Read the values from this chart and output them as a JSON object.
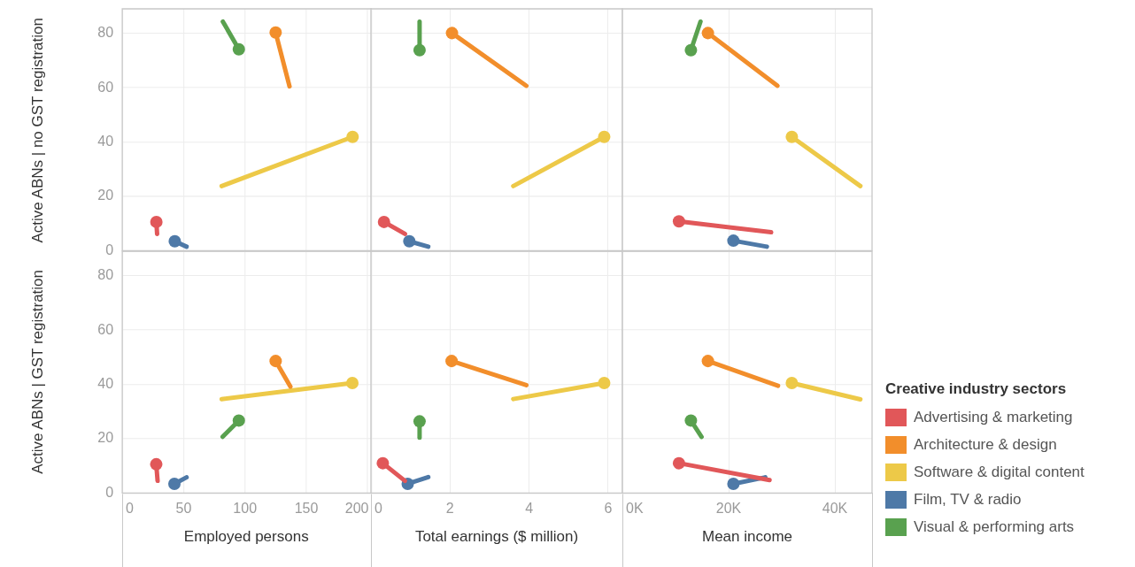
{
  "chart_data": [
    {
      "type": "line",
      "ylabel": "Active ABNs | no GST registration",
      "xlim": [
        0,
        203
      ],
      "xticks": [
        0,
        50,
        100,
        150,
        200
      ],
      "ylim": [
        0,
        89
      ],
      "yticks": [
        0,
        20,
        40,
        60,
        80
      ],
      "tick_labels": "y",
      "grid": true,
      "marker": "circle",
      "series": [
        {
          "color": "#e15759",
          "x": [
            28.4,
            27.8
          ],
          "values": [
            6.2,
            10.6
          ]
        },
        {
          "color": "#f28e2b",
          "x": [
            136.3,
            125
          ],
          "values": [
            60.5,
            80.3
          ]
        },
        {
          "color": "#edc948",
          "x": [
            81,
            187.7
          ],
          "values": [
            23.8,
            41.9
          ]
        },
        {
          "color": "#4e79a7",
          "x": [
            52.4,
            42.8
          ],
          "values": [
            1.5,
            3.5
          ]
        },
        {
          "color": "#59a14f",
          "x": [
            82,
            95
          ],
          "values": [
            84.3,
            74.1
          ]
        }
      ]
    },
    {
      "type": "line",
      "xlim": [
        0,
        6.36
      ],
      "xticks": [
        0,
        2,
        4,
        6
      ],
      "ylim": [
        0,
        89
      ],
      "yticks": [
        0,
        20,
        40,
        60,
        80
      ],
      "tick_labels": false,
      "grid": true,
      "marker": "circle",
      "series": [
        {
          "color": "#e15759",
          "x": [
            0.86,
            0.33
          ],
          "values": [
            6.2,
            10.6
          ]
        },
        {
          "color": "#f28e2b",
          "x": [
            3.93,
            2.05
          ],
          "values": [
            60.7,
            80.1
          ]
        },
        {
          "color": "#edc948",
          "x": [
            3.6,
            5.9
          ],
          "values": [
            23.8,
            41.9
          ]
        },
        {
          "color": "#4e79a7",
          "x": [
            1.45,
            0.97
          ],
          "values": [
            1.5,
            3.5
          ]
        },
        {
          "color": "#59a14f",
          "x": [
            1.23,
            1.23
          ],
          "values": [
            84.3,
            73.8
          ]
        }
      ]
    },
    {
      "type": "line",
      "xlim": [
        0,
        47000
      ],
      "xticks": [
        0,
        20000,
        40000
      ],
      "ylim": [
        0,
        89
      ],
      "yticks": [
        0,
        20,
        40,
        60,
        80
      ],
      "tick_labels": false,
      "grid": true,
      "marker": "circle",
      "series": [
        {
          "color": "#e15759",
          "x": [
            28000,
            10650
          ],
          "values": [
            6.8,
            10.8
          ]
        },
        {
          "color": "#f28e2b",
          "x": [
            29200,
            16100
          ],
          "values": [
            60.7,
            80.1
          ]
        },
        {
          "color": "#edc948",
          "x": [
            44800,
            31900
          ],
          "values": [
            23.8,
            41.9
          ]
        },
        {
          "color": "#4e79a7",
          "x": [
            27200,
            20900
          ],
          "values": [
            1.5,
            3.7
          ]
        },
        {
          "color": "#59a14f",
          "x": [
            14700,
            12900
          ],
          "values": [
            84.3,
            73.8
          ]
        }
      ]
    },
    {
      "type": "line",
      "ylabel": "Active ABNs | GST registration",
      "xlabel": "Employed persons",
      "xlim": [
        0,
        203
      ],
      "xticks": [
        0,
        50,
        100,
        150,
        200
      ],
      "ylim": [
        0,
        89
      ],
      "yticks": [
        0,
        20,
        40,
        60,
        80
      ],
      "grid": true,
      "marker": "circle",
      "series": [
        {
          "color": "#e15759",
          "x": [
            28.8,
            27.7
          ],
          "values": [
            4.5,
            10.6
          ]
        },
        {
          "color": "#f28e2b",
          "x": [
            137,
            125
          ],
          "values": [
            39.2,
            48.6
          ]
        },
        {
          "color": "#edc948",
          "x": [
            81,
            187.5
          ],
          "values": [
            34.6,
            40.5
          ]
        },
        {
          "color": "#4e79a7",
          "x": [
            52.4,
            42.5
          ],
          "values": [
            5.8,
            3.4
          ]
        },
        {
          "color": "#59a14f",
          "x": [
            81.8,
            95
          ],
          "values": [
            20.7,
            26.7
          ]
        }
      ]
    },
    {
      "type": "line",
      "xlabel": "Total earnings ($ million)",
      "xlim": [
        0,
        6.36
      ],
      "xticks": [
        0,
        2,
        4,
        6
      ],
      "ylim": [
        0,
        89
      ],
      "yticks": [
        0,
        20,
        40,
        60,
        80
      ],
      "tick_labels": "x",
      "grid": true,
      "marker": "circle",
      "series": [
        {
          "color": "#e15759",
          "x": [
            0.86,
            0.3
          ],
          "values": [
            4.5,
            11
          ]
        },
        {
          "color": "#f28e2b",
          "x": [
            3.93,
            2.04
          ],
          "values": [
            39.7,
            48.6
          ]
        },
        {
          "color": "#edc948",
          "x": [
            3.6,
            5.9
          ],
          "values": [
            34.6,
            40.5
          ]
        },
        {
          "color": "#4e79a7",
          "x": [
            1.45,
            0.93
          ],
          "values": [
            5.9,
            3.4
          ]
        },
        {
          "color": "#59a14f",
          "x": [
            1.23,
            1.23
          ],
          "values": [
            20.4,
            26.4
          ]
        }
      ]
    },
    {
      "type": "line",
      "xlabel": "Mean income",
      "xlim": [
        0,
        47000
      ],
      "xticks": [
        {
          "value": 0,
          "label": "0K"
        },
        {
          "value": 20000,
          "label": "20K"
        },
        {
          "value": 40000,
          "label": "40K"
        }
      ],
      "ylim": [
        0,
        89
      ],
      "yticks": [
        0,
        20,
        40,
        60,
        80
      ],
      "tick_labels": "x",
      "grid": true,
      "marker": "circle",
      "legend": "right",
      "legend_title": "Creative industry sectors",
      "series": [
        {
          "name": "Advertising & marketing",
          "color": "#e15759",
          "x": [
            27700,
            10650
          ],
          "values": [
            4.8,
            11
          ]
        },
        {
          "name": "Architecture & design",
          "color": "#f28e2b",
          "x": [
            29300,
            16100
          ],
          "values": [
            39.5,
            48.6
          ]
        },
        {
          "name": "Software & digital content",
          "color": "#edc948",
          "x": [
            44800,
            31900
          ],
          "values": [
            34.5,
            40.5
          ]
        },
        {
          "name": "Film, TV & radio",
          "color": "#4e79a7",
          "x": [
            26900,
            20900
          ],
          "values": [
            5.8,
            3.4
          ]
        },
        {
          "name": "Visual & performing arts",
          "color": "#59a14f",
          "x": [
            14900,
            12900
          ],
          "values": [
            20.7,
            26.7
          ]
        }
      ]
    }
  ]
}
